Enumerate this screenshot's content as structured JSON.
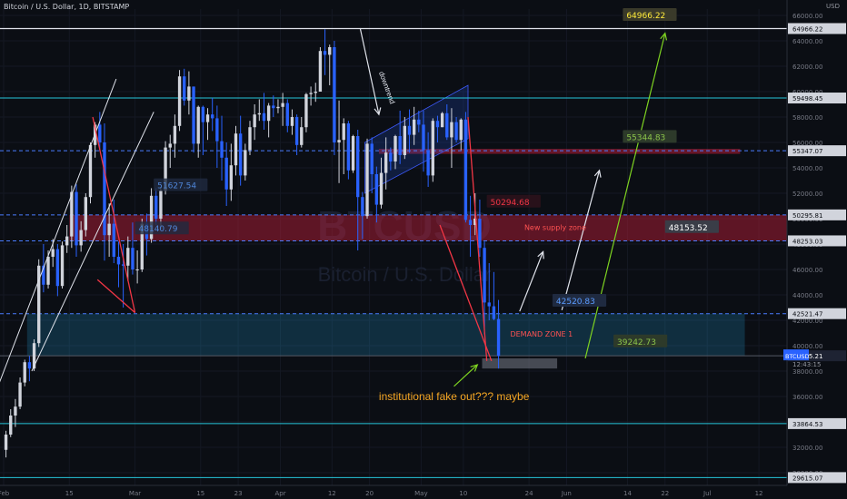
{
  "header": {
    "title": "Bitcoin / U.S. Dollar, 1D, BITSTAMP",
    "currency": "USD"
  },
  "watermark": {
    "symbol": "BTCUSD",
    "name": "Bitcoin / U.S. Dollar"
  },
  "colors": {
    "background": "#0b0e14",
    "bull": "#d1d4dc",
    "bear": "#2962ff",
    "teal_line": "#26c6da",
    "red": "#f23645",
    "green": "#7ed321",
    "white_line": "#e0e3eb",
    "orange_text": "#f5a623"
  },
  "chart_data": {
    "type": "candlestick",
    "price_axis": {
      "min": 29000,
      "max": 66500,
      "ticks": [
        30000,
        32000,
        34000,
        36000,
        38000,
        40000,
        42000,
        44000,
        46000,
        48000,
        50000,
        52000,
        54000,
        56000,
        58000,
        60000,
        62000,
        64000,
        66000,
        68000
      ]
    },
    "time_axis": {
      "labels": [
        {
          "label": "Feb",
          "day": 0
        },
        {
          "label": "15",
          "day": 14
        },
        {
          "label": "Mar",
          "day": 28
        },
        {
          "label": "15",
          "day": 42
        },
        {
          "label": "23",
          "day": 50
        },
        {
          "label": "Apr",
          "day": 59
        },
        {
          "label": "12",
          "day": 70
        },
        {
          "label": "20",
          "day": 78
        },
        {
          "label": "May",
          "day": 89
        },
        {
          "label": "10",
          "day": 98
        },
        {
          "label": "24",
          "day": 112
        },
        {
          "label": "Jun",
          "day": 120
        },
        {
          "label": "14",
          "day": 133
        },
        {
          "label": "22",
          "day": 141
        },
        {
          "label": "Jul",
          "day": 150
        },
        {
          "label": "12",
          "day": 161
        }
      ],
      "total_days": 167
    },
    "candles": [
      [
        31800,
        33300,
        31200,
        33000
      ],
      [
        33000,
        35000,
        32800,
        34500
      ],
      [
        34500,
        35800,
        33600,
        35200
      ],
      [
        35200,
        37500,
        35000,
        37100
      ],
      [
        37100,
        38900,
        36800,
        38700
      ],
      [
        38700,
        39200,
        37200,
        38200
      ],
      [
        38200,
        40500,
        38000,
        40200
      ],
      [
        40200,
        46800,
        39900,
        46300
      ],
      [
        46300,
        48000,
        44200,
        44800
      ],
      [
        44800,
        47500,
        44500,
        47000
      ],
      [
        47000,
        48400,
        46200,
        47600
      ],
      [
        47600,
        48000,
        43900,
        44700
      ],
      [
        44700,
        48200,
        44500,
        47900
      ],
      [
        47900,
        49500,
        47300,
        48600
      ],
      [
        48600,
        52600,
        47700,
        52100
      ],
      [
        52100,
        52700,
        47000,
        47900
      ],
      [
        47900,
        49800,
        47400,
        49100
      ],
      [
        49100,
        52000,
        48600,
        51700
      ],
      [
        51700,
        56000,
        51200,
        55800
      ],
      [
        55800,
        57600,
        54800,
        57400
      ],
      [
        57400,
        58400,
        55300,
        56000
      ],
      [
        56000,
        57500,
        46700,
        48700
      ],
      [
        48700,
        51200,
        47000,
        49600
      ],
      [
        49600,
        51500,
        46500,
        47000
      ],
      [
        47000,
        48200,
        44600,
        46400
      ],
      [
        46400,
        48000,
        43000,
        46300
      ],
      [
        46300,
        48600,
        45100,
        47700
      ],
      [
        47700,
        49700,
        45600,
        46000
      ],
      [
        46000,
        47500,
        44900,
        46000
      ],
      [
        46000,
        50000,
        45800,
        49600
      ],
      [
        49600,
        50400,
        47100,
        48400
      ],
      [
        48400,
        52400,
        48100,
        51800
      ],
      [
        51800,
        52400,
        49500,
        50000
      ],
      [
        50000,
        52500,
        49200,
        52200
      ],
      [
        52200,
        56100,
        51900,
        55600
      ],
      [
        55600,
        56600,
        54000,
        55900
      ],
      [
        55900,
        58200,
        54800,
        57300
      ],
      [
        57300,
        61700,
        56900,
        61200
      ],
      [
        61200,
        61800,
        58900,
        59300
      ],
      [
        59300,
        61600,
        58200,
        60400
      ],
      [
        60400,
        60400,
        55200,
        55900
      ],
      [
        55900,
        58900,
        54800,
        58800
      ],
      [
        58800,
        58900,
        55000,
        57600
      ],
      [
        57600,
        58700,
        56200,
        58200
      ],
      [
        58200,
        59500,
        56900,
        57900
      ],
      [
        57900,
        58900,
        54000,
        56100
      ],
      [
        56100,
        58100,
        53000,
        54800
      ],
      [
        54800,
        56000,
        51000,
        52300
      ],
      [
        52300,
        55900,
        51400,
        54200
      ],
      [
        54200,
        57300,
        53400,
        56700
      ],
      [
        56700,
        58100,
        52600,
        53400
      ],
      [
        53400,
        55900,
        53000,
        55400
      ],
      [
        55400,
        57700,
        55000,
        57200
      ],
      [
        57200,
        59000,
        56200,
        58200
      ],
      [
        58200,
        59400,
        57700,
        58300
      ],
      [
        58300,
        59900,
        57000,
        57700
      ],
      [
        57700,
        59100,
        56400,
        58900
      ],
      [
        58900,
        59700,
        58000,
        58700
      ],
      [
        58700,
        59400,
        58300,
        58800
      ],
      [
        58800,
        59900,
        57300,
        59100
      ],
      [
        59100,
        59400,
        56800,
        57300
      ],
      [
        57300,
        58600,
        56600,
        58000
      ],
      [
        58000,
        58200,
        55000,
        55800
      ],
      [
        55800,
        58000,
        55600,
        57200
      ],
      [
        57200,
        59900,
        56800,
        59800
      ],
      [
        59800,
        60400,
        58900,
        59900
      ],
      [
        59900,
        60700,
        59200,
        60000
      ],
      [
        60000,
        63500,
        60000,
        63200
      ],
      [
        63200,
        64900,
        61300,
        62900
      ],
      [
        62900,
        63700,
        60500,
        63500
      ],
      [
        63500,
        64000,
        55000,
        56000
      ],
      [
        56000,
        59300,
        52800,
        56200
      ],
      [
        56200,
        57900,
        53500,
        57500
      ],
      [
        57500,
        57700,
        53100,
        53800
      ],
      [
        53800,
        56600,
        53600,
        56500
      ],
      [
        56500,
        57000,
        47500,
        51700
      ],
      [
        51700,
        52100,
        48400,
        50200
      ],
      [
        50200,
        56300,
        50000,
        55900
      ],
      [
        55900,
        56400,
        52000,
        53500
      ],
      [
        53500,
        54100,
        49700,
        51100
      ],
      [
        51100,
        54800,
        50800,
        53600
      ],
      [
        53600,
        56400,
        52300,
        55200
      ],
      [
        55200,
        55600,
        53800,
        54500
      ],
      [
        54500,
        56600,
        53900,
        56500
      ],
      [
        56500,
        58500,
        54300,
        55000
      ],
      [
        55000,
        58000,
        54700,
        57300
      ],
      [
        57300,
        58600,
        55200,
        56600
      ],
      [
        56600,
        58800,
        55800,
        57800
      ],
      [
        57800,
        58500,
        56800,
        57400
      ],
      [
        57400,
        58500,
        53700,
        55400
      ],
      [
        55400,
        56800,
        52500,
        53400
      ],
      [
        53400,
        57900,
        52900,
        57700
      ],
      [
        57700,
        58100,
        56000,
        57200
      ],
      [
        57200,
        58400,
        57200,
        58300
      ],
      [
        58300,
        59000,
        56200,
        56400
      ],
      [
        56400,
        58700,
        54000,
        57600
      ],
      [
        57600,
        58000,
        56000,
        56200
      ],
      [
        56200,
        57900,
        55400,
        57800
      ],
      [
        57800,
        58400,
        49700,
        49900
      ],
      [
        49900,
        51800,
        47000,
        49500
      ],
      [
        49500,
        52000,
        48700,
        50000
      ],
      [
        50000,
        51500,
        47000,
        47700
      ],
      [
        47700,
        48200,
        40900,
        43400
      ],
      [
        43400,
        46500,
        42000,
        43100
      ],
      [
        43100,
        45800,
        42000,
        42100
      ],
      [
        42100,
        43600,
        38200,
        39200
      ]
    ],
    "horizontal_levels": [
      {
        "price": 64966.22,
        "color": "white",
        "style": "solid",
        "label": "64966.22"
      },
      {
        "price": 59498.45,
        "color": "teal",
        "style": "solid",
        "label": "59498.45"
      },
      {
        "price": 55347.07,
        "color": "blue",
        "style": "dashed",
        "label": "55347.07"
      },
      {
        "price": 50295.81,
        "color": "blue",
        "style": "dashed",
        "label": "50295.81"
      },
      {
        "price": 48253.03,
        "color": "blue",
        "style": "dashed",
        "label": "48253.03"
      },
      {
        "price": 42521.47,
        "color": "blue",
        "style": "dashed",
        "label": "42521.47"
      },
      {
        "price": 39205.21,
        "color": "price",
        "style": "solid",
        "label": "39205.21"
      },
      {
        "price": 33864.53,
        "color": "teal",
        "style": "solid",
        "label": "33864.53"
      },
      {
        "price": 29615.07,
        "color": "teal",
        "style": "solid",
        "label": "29615.07"
      }
    ],
    "last_price": {
      "symbol": "BTCUSD",
      "price": "39205.21",
      "countdown": "12:43:15"
    },
    "zones": [
      {
        "name": "supply",
        "label": "New supply zone",
        "from_day": 14,
        "to_day": 167,
        "low": 48253,
        "high": 50296
      },
      {
        "name": "demand",
        "label": "DEMAND ZONE 1",
        "from_day": 5,
        "to_day": 158,
        "low": 39205,
        "high": 42521
      },
      {
        "name": "red-band",
        "label": "",
        "from_day": 80,
        "to_day": 157,
        "low": 55100,
        "high": 55500
      },
      {
        "name": "wick-box",
        "label": "",
        "from_day": 102,
        "to_day": 118,
        "low": 38200,
        "high": 39000
      }
    ],
    "price_labels": [
      {
        "text": "64966.22",
        "day": 132,
        "price": 66000,
        "variant": "yellow"
      },
      {
        "text": "55344.83",
        "day": 132,
        "price": 56400,
        "variant": "green"
      },
      {
        "text": "48153.52",
        "day": 141,
        "price": 49300,
        "variant": "white"
      },
      {
        "text": "39242.73",
        "day": 130,
        "price": 40300,
        "variant": "green"
      },
      {
        "text": "42520.83",
        "day": 117,
        "price": 43500,
        "variant": "blue"
      },
      {
        "text": "51627.54",
        "day": 32,
        "price": 52600,
        "variant": "blue-muted"
      },
      {
        "text": "48140.79",
        "day": 28,
        "price": 49200,
        "variant": "blue-muted"
      },
      {
        "text": "50294.68",
        "day": 103,
        "price": 51300,
        "variant": "red"
      }
    ],
    "annotations": [
      {
        "text": "downtrend",
        "day": 80,
        "price": 61500,
        "color": "white",
        "rotate": 70
      },
      {
        "text": "institutional fake out??? maybe",
        "day": 80,
        "price": 35700,
        "color": "orange",
        "size": 12
      }
    ],
    "channel": {
      "start_day": 77,
      "end_day": 99,
      "upper_start": 56000,
      "upper_end": 60500,
      "lower_start": 52000,
      "lower_end": 56300
    }
  }
}
